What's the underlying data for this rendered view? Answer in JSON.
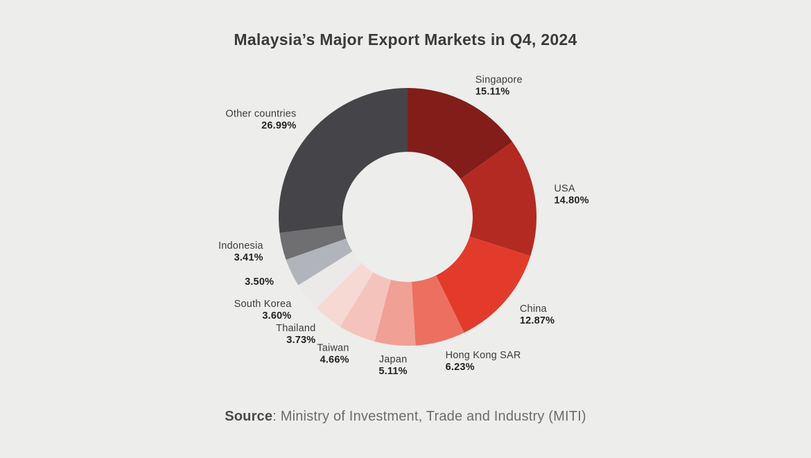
{
  "header": {
    "title": "Malaysia’s Major Export Markets in Q4, 2024"
  },
  "source": {
    "label": "Source",
    "rest": ": Ministry of Investment, Trade and Industry (MITI)"
  },
  "chart_data": {
    "type": "pie",
    "subtype": "donut",
    "title": "Malaysia’s Major Export Markets in Q4, 2024",
    "start_angle_deg": 0,
    "direction": "clockwise",
    "inner_radius_ratio": 0.505,
    "legend_position": "none",
    "labels": "outside, two-line (name / percent), percent bold",
    "background_color": "#EDEDEB",
    "slices": [
      {
        "label": "Singapore",
        "value": 15.11,
        "value_label": "15.11%",
        "color": "#831D19"
      },
      {
        "label": "USA",
        "value": 14.8,
        "value_label": "14.80%",
        "color": "#B32A22"
      },
      {
        "label": "China",
        "value": 12.87,
        "value_label": "12.87%",
        "color": "#E23B2B"
      },
      {
        "label": "Hong Kong SAR",
        "value": 6.23,
        "value_label": "6.23%",
        "color": "#EC6F60"
      },
      {
        "label": "Japan",
        "value": 5.11,
        "value_label": "5.11%",
        "color": "#F0A095"
      },
      {
        "label": "Taiwan",
        "value": 4.66,
        "value_label": "4.66%",
        "color": "#F4C4BC"
      },
      {
        "label": "Thailand",
        "value": 3.73,
        "value_label": "3.73%",
        "color": "#F7D9D4"
      },
      {
        "label": "South Korea",
        "value": 3.6,
        "value_label": "3.60%",
        "color": "#ECEAE8"
      },
      {
        "label": "",
        "value": 3.5,
        "value_label": "3.50%",
        "color": "#B1B5BB"
      },
      {
        "label": "Indonesia",
        "value": 3.41,
        "value_label": "3.41%",
        "color": "#6F6F72"
      },
      {
        "label": "Other countries",
        "value": 26.99,
        "value_label": "26.99%",
        "color": "#454549"
      }
    ]
  }
}
